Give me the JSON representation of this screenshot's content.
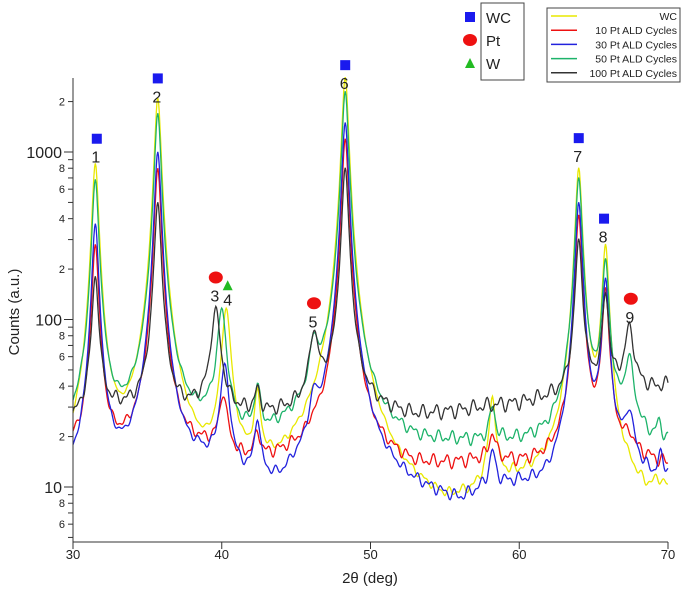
{
  "chart_data": {
    "type": "line",
    "title": "",
    "xlabel": "2θ (deg)",
    "ylabel": "Counts (a.u.)",
    "xlim": [
      30,
      70
    ],
    "ylim": [
      4.7,
      2800
    ],
    "yscale": "log",
    "grid": false,
    "x_ticks": [
      30,
      40,
      50,
      60,
      70
    ],
    "y_major_ticks": [
      10,
      100,
      1000
    ],
    "y_minor_labeled": [
      {
        "value": 6,
        "label": "6"
      },
      {
        "value": 8,
        "label": "8"
      },
      {
        "value": 20,
        "label": "2"
      },
      {
        "value": 40,
        "label": "4"
      },
      {
        "value": 60,
        "label": "6"
      },
      {
        "value": 80,
        "label": "8"
      },
      {
        "value": 200,
        "label": "2"
      },
      {
        "value": 400,
        "label": "4"
      },
      {
        "value": 600,
        "label": "6"
      },
      {
        "value": 800,
        "label": "8"
      },
      {
        "value": 2000,
        "label": "2"
      }
    ],
    "series": [
      {
        "name": "WC",
        "color": "#e8e800",
        "background": [
          [
            30,
            8
          ],
          [
            31,
            7
          ],
          [
            33,
            7.5
          ],
          [
            34,
            8
          ],
          [
            37,
            7
          ],
          [
            39,
            7
          ],
          [
            41,
            8
          ],
          [
            44,
            9
          ],
          [
            46,
            12
          ],
          [
            47,
            13
          ],
          [
            50,
            7
          ],
          [
            53,
            6
          ],
          [
            55,
            5.5
          ],
          [
            57,
            7
          ],
          [
            58,
            9
          ],
          [
            60,
            9
          ],
          [
            62,
            9
          ],
          [
            63.5,
            10
          ],
          [
            67,
            8
          ],
          [
            68.5,
            7
          ],
          [
            69.5,
            9
          ],
          [
            70,
            8
          ]
        ],
        "peaks": [
          [
            31.5,
            850
          ],
          [
            35.7,
            2100
          ],
          [
            40.3,
            110
          ],
          [
            42.4,
            30
          ],
          [
            48.3,
            2800
          ],
          [
            58.2,
            32
          ],
          [
            64.0,
            800
          ],
          [
            65.8,
            270
          ]
        ]
      },
      {
        "name": "10 Pt ALD Cycles",
        "color": "#ee1111",
        "background": [
          [
            30,
            15
          ],
          [
            31,
            14
          ],
          [
            33,
            14
          ],
          [
            35,
            15
          ],
          [
            37,
            14
          ],
          [
            39,
            15
          ],
          [
            41,
            13
          ],
          [
            43,
            13
          ],
          [
            45,
            14
          ],
          [
            47,
            15
          ],
          [
            50,
            13
          ],
          [
            53,
            12
          ],
          [
            56,
            13
          ],
          [
            58,
            14
          ],
          [
            60,
            13
          ],
          [
            62,
            13
          ],
          [
            63.5,
            14
          ],
          [
            67,
            15
          ],
          [
            70,
            13
          ]
        ],
        "peaks": [
          [
            31.5,
            280
          ],
          [
            35.7,
            800
          ],
          [
            40.1,
            33
          ],
          [
            42.4,
            19
          ],
          [
            46.2,
            17
          ],
          [
            48.3,
            1200
          ],
          [
            58.2,
            20
          ],
          [
            64.0,
            420
          ],
          [
            65.8,
            150
          ],
          [
            67.4,
            18
          ]
        ]
      },
      {
        "name": "30 Pt ALD Cycles",
        "color": "#2222dd",
        "background": [
          [
            30,
            9
          ],
          [
            31,
            8.5
          ],
          [
            33,
            9
          ],
          [
            35,
            9
          ],
          [
            37,
            9
          ],
          [
            38.5,
            11
          ],
          [
            41,
            9
          ],
          [
            43,
            8
          ],
          [
            44,
            7.5
          ],
          [
            45,
            9
          ],
          [
            47,
            11
          ],
          [
            50,
            9
          ],
          [
            53,
            8
          ],
          [
            56,
            7
          ],
          [
            58,
            9
          ],
          [
            60,
            9
          ],
          [
            62,
            8
          ],
          [
            63.5,
            9
          ],
          [
            67,
            13
          ],
          [
            69,
            10
          ],
          [
            70,
            11
          ]
        ],
        "peaks": [
          [
            31.5,
            370
          ],
          [
            35.7,
            1000
          ],
          [
            40.2,
            50
          ],
          [
            42.4,
            22
          ],
          [
            46.2,
            25
          ],
          [
            48.3,
            1500
          ],
          [
            58.2,
            15
          ],
          [
            64.0,
            500
          ],
          [
            65.8,
            170
          ],
          [
            67.4,
            25
          ],
          [
            69.5,
            14
          ]
        ]
      },
      {
        "name": "50 Pt ALD Cycles",
        "color": "#1db36a",
        "background": [
          [
            30,
            18
          ],
          [
            31,
            17
          ],
          [
            33,
            17
          ],
          [
            35,
            18
          ],
          [
            37,
            17
          ],
          [
            39,
            20
          ],
          [
            41,
            17
          ],
          [
            43,
            17
          ],
          [
            45,
            20
          ],
          [
            47,
            22
          ],
          [
            50,
            17
          ],
          [
            53,
            16
          ],
          [
            56,
            17
          ],
          [
            58,
            17
          ],
          [
            60,
            17
          ],
          [
            62,
            17
          ],
          [
            63.5,
            20
          ],
          [
            67,
            22
          ],
          [
            69,
            17
          ],
          [
            70,
            17
          ]
        ],
        "peaks": [
          [
            31.5,
            680
          ],
          [
            35.7,
            1700
          ],
          [
            40.0,
            110
          ],
          [
            42.4,
            35
          ],
          [
            46.2,
            60
          ],
          [
            48.3,
            2300
          ],
          [
            58.2,
            28
          ],
          [
            64.0,
            700
          ],
          [
            65.8,
            220
          ],
          [
            67.4,
            55
          ],
          [
            69.4,
            22
          ]
        ]
      },
      {
        "name": "100 Pt ALD Cycles",
        "color": "#333333",
        "background": [
          [
            30,
            24
          ],
          [
            31,
            27
          ],
          [
            33,
            28
          ],
          [
            35,
            27
          ],
          [
            37,
            26
          ],
          [
            39,
            30
          ],
          [
            41,
            27
          ],
          [
            43,
            26
          ],
          [
            45,
            28
          ],
          [
            47,
            32
          ],
          [
            50,
            28
          ],
          [
            53,
            26
          ],
          [
            56,
            28
          ],
          [
            58,
            30
          ],
          [
            60,
            31
          ],
          [
            62,
            33
          ],
          [
            63.5,
            33
          ],
          [
            67,
            38
          ],
          [
            69,
            38
          ],
          [
            70,
            40
          ]
        ],
        "peaks": [
          [
            31.5,
            180
          ],
          [
            35.7,
            500
          ],
          [
            39.6,
            115
          ],
          [
            42.4,
            36
          ],
          [
            46.2,
            80
          ],
          [
            48.3,
            800
          ],
          [
            64.0,
            300
          ],
          [
            65.8,
            140
          ],
          [
            67.4,
            90
          ]
        ]
      }
    ],
    "annotations": [
      {
        "label": "1",
        "marker": "WC",
        "x": 31.6,
        "y": 1200
      },
      {
        "label": "2",
        "marker": "WC",
        "x": 35.7,
        "y": 2750
      },
      {
        "label": "3",
        "marker": "Pt",
        "x": 39.6,
        "y": 178
      },
      {
        "label": "4",
        "marker": "W",
        "x": 40.4,
        "y": 160
      },
      {
        "label": "5",
        "marker": "Pt",
        "x": 46.2,
        "y": 125
      },
      {
        "label": "6",
        "marker": "WC",
        "x": 48.3,
        "y": 3300
      },
      {
        "label": "7",
        "marker": "WC",
        "x": 64.0,
        "y": 1210
      },
      {
        "label": "8",
        "marker": "WC",
        "x": 65.7,
        "y": 400
      },
      {
        "label": "9",
        "marker": "Pt",
        "x": 67.5,
        "y": 133
      }
    ],
    "marker_legend": [
      {
        "name": "WC",
        "shape": "square",
        "color": "#1a1aee"
      },
      {
        "name": "Pt",
        "shape": "circle",
        "color": "#ee1111"
      },
      {
        "name": "W",
        "shape": "triangle",
        "color": "#22bb22"
      }
    ],
    "legend_placement": "top-right"
  }
}
